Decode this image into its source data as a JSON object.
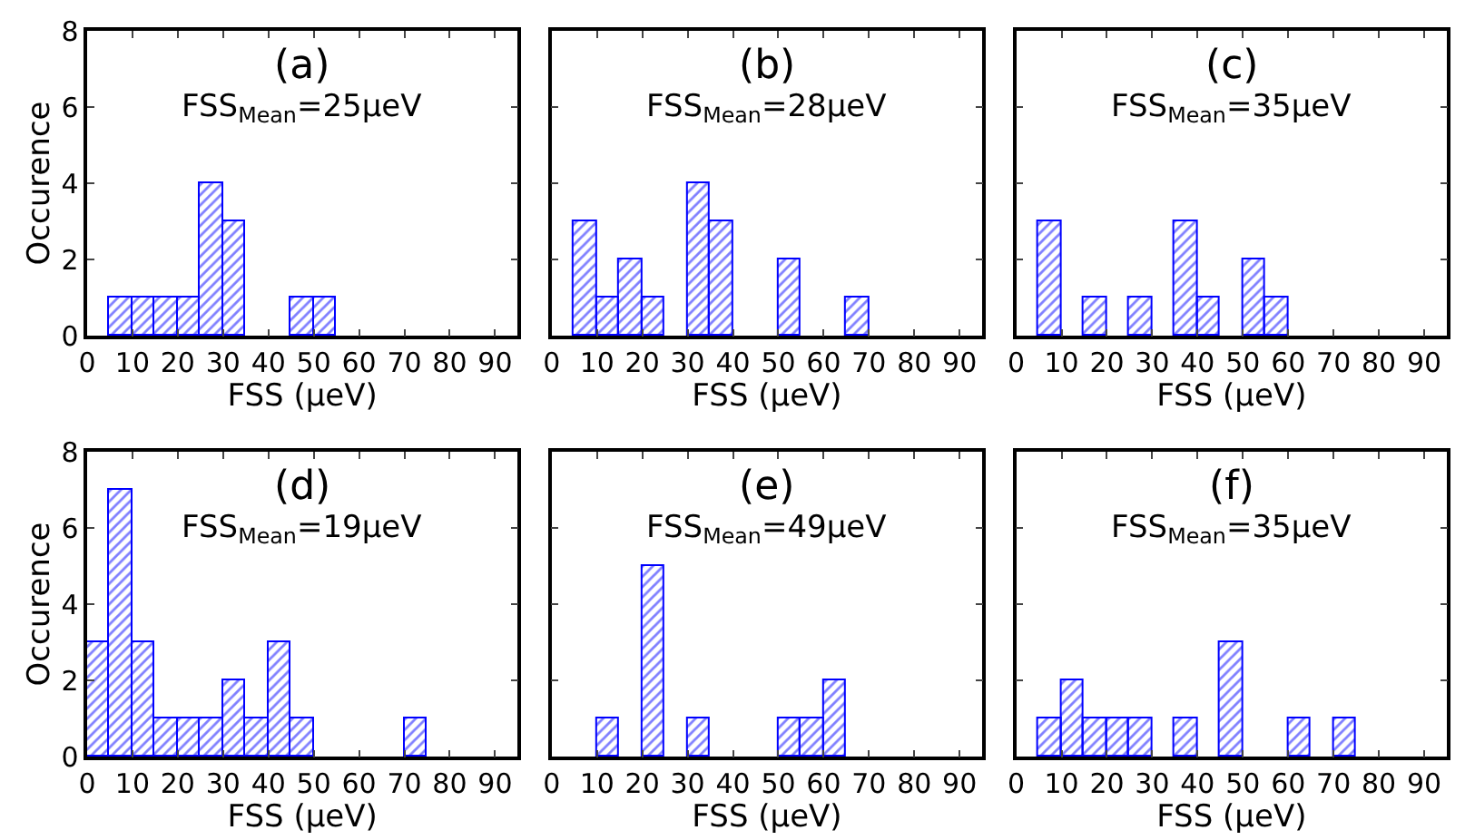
{
  "chart_data": [
    {
      "type": "histogram",
      "bins": [
        0,
        5,
        10,
        15,
        20,
        25,
        30,
        35,
        40,
        45,
        50,
        55,
        60,
        65,
        70,
        75,
        80,
        85,
        90,
        95
      ],
      "values": [
        0,
        1,
        1,
        1,
        1,
        4,
        3,
        0,
        0,
        1,
        1,
        0,
        0,
        0,
        0,
        0,
        0,
        0,
        0
      ],
      "color": "#0000ff",
      "xlim": [
        0,
        95
      ],
      "ylim": [
        0,
        8
      ],
      "xticks": [
        0,
        10,
        20,
        30,
        40,
        50,
        60,
        70,
        80,
        90
      ],
      "yticks": [
        0,
        2,
        4,
        6,
        8
      ],
      "xlabel": "FSS (μeV)",
      "ylabel": "Occurence",
      "annotations": [
        "(a)",
        "FSS$_{Mean}$=25μeV"
      ]
    },
    {
      "type": "histogram",
      "bins": [
        0,
        5,
        10,
        15,
        20,
        25,
        30,
        35,
        40,
        45,
        50,
        55,
        60,
        65,
        70,
        75,
        80,
        85,
        90,
        95
      ],
      "values": [
        0,
        3,
        1,
        2,
        1,
        0,
        4,
        3,
        0,
        0,
        2,
        0,
        0,
        1,
        0,
        0,
        0,
        0,
        0
      ],
      "color": "#0000ff",
      "xlim": [
        0,
        95
      ],
      "ylim": [
        0,
        8
      ],
      "xticks": [
        0,
        10,
        20,
        30,
        40,
        50,
        60,
        70,
        80,
        90
      ],
      "yticks": [
        0,
        2,
        4,
        6,
        8
      ],
      "xlabel": "FSS (μeV)",
      "tick_labels": "x",
      "annotations": [
        "(b)",
        "FSS$_{Mean}$=28μeV"
      ]
    },
    {
      "type": "histogram",
      "bins": [
        0,
        5,
        10,
        15,
        20,
        25,
        30,
        35,
        40,
        45,
        50,
        55,
        60,
        65,
        70,
        75,
        80,
        85,
        90,
        95
      ],
      "values": [
        0,
        3,
        0,
        1,
        0,
        1,
        0,
        3,
        1,
        0,
        2,
        1,
        0,
        0,
        0,
        0,
        0,
        0,
        0
      ],
      "color": "#0000ff",
      "xlim": [
        0,
        95
      ],
      "ylim": [
        0,
        8
      ],
      "xticks": [
        0,
        10,
        20,
        30,
        40,
        50,
        60,
        70,
        80,
        90
      ],
      "yticks": [
        0,
        2,
        4,
        6,
        8
      ],
      "xlabel": "FSS (μeV)",
      "tick_labels": "x",
      "annotations": [
        "(c)",
        "FSS$_{Mean}$=35μeV"
      ]
    },
    {
      "type": "histogram",
      "bins": [
        0,
        5,
        10,
        15,
        20,
        25,
        30,
        35,
        40,
        45,
        50,
        55,
        60,
        65,
        70,
        75,
        80,
        85,
        90,
        95
      ],
      "values": [
        3,
        7,
        3,
        1,
        1,
        1,
        2,
        1,
        3,
        1,
        0,
        0,
        0,
        0,
        1,
        0,
        0,
        0,
        0
      ],
      "color": "#0000ff",
      "xlim": [
        0,
        95
      ],
      "ylim": [
        0,
        8
      ],
      "xticks": [
        0,
        10,
        20,
        30,
        40,
        50,
        60,
        70,
        80,
        90
      ],
      "yticks": [
        0,
        2,
        4,
        6,
        8
      ],
      "xlabel": "FSS (μeV)",
      "ylabel": "Occurence",
      "annotations": [
        "(d)",
        "FSS$_{Mean}$=19μeV"
      ]
    },
    {
      "type": "histogram",
      "bins": [
        0,
        5,
        10,
        15,
        20,
        25,
        30,
        35,
        40,
        45,
        50,
        55,
        60,
        65,
        70,
        75,
        80,
        85,
        90,
        95
      ],
      "values": [
        0,
        0,
        1,
        0,
        5,
        0,
        1,
        0,
        0,
        0,
        1,
        1,
        2,
        0,
        0,
        0,
        0,
        0,
        0
      ],
      "color": "#0000ff",
      "xlim": [
        0,
        95
      ],
      "ylim": [
        0,
        8
      ],
      "xticks": [
        0,
        10,
        20,
        30,
        40,
        50,
        60,
        70,
        80,
        90
      ],
      "yticks": [
        0,
        2,
        4,
        6,
        8
      ],
      "xlabel": "FSS (μeV)",
      "tick_labels": "x",
      "annotations": [
        "(e)",
        "FSS$_{Mean}$=49μeV"
      ]
    },
    {
      "type": "histogram",
      "bins": [
        0,
        5,
        10,
        15,
        20,
        25,
        30,
        35,
        40,
        45,
        50,
        55,
        60,
        65,
        70,
        75,
        80,
        85,
        90,
        95
      ],
      "values": [
        0,
        1,
        2,
        1,
        1,
        1,
        0,
        1,
        0,
        3,
        0,
        0,
        1,
        0,
        1,
        0,
        0,
        0,
        0
      ],
      "color": "#0000ff",
      "xlim": [
        0,
        95
      ],
      "ylim": [
        0,
        8
      ],
      "xticks": [
        0,
        10,
        20,
        30,
        40,
        50,
        60,
        70,
        80,
        90
      ],
      "yticks": [
        0,
        2,
        4,
        6,
        8
      ],
      "xlabel": "FSS (μeV)",
      "tick_labels": "x",
      "annotations": [
        "(f)",
        "FSS$_{Mean}$=35μeV"
      ]
    }
  ]
}
